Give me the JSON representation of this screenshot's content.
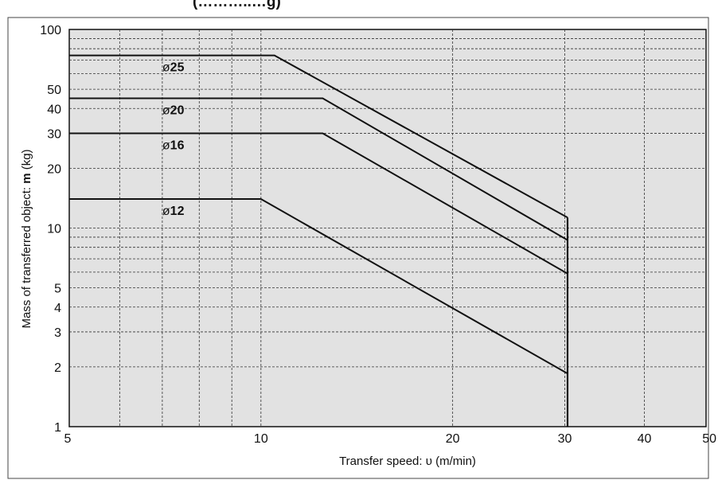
{
  "chart_data": {
    "type": "line",
    "title_fragment": "(………..…g)",
    "xlabel": "Transfer speed: υ (m/min)",
    "ylabel_prefix": "Mass of transferred object: ",
    "ylabel_bold": "m",
    "ylabel_suffix": " (kg)",
    "x_scale": "log",
    "y_scale": "log",
    "xlim": [
      5,
      50
    ],
    "ylim": [
      1,
      100
    ],
    "x_ticks": [
      5,
      10,
      20,
      30,
      40,
      50
    ],
    "y_ticks": [
      1,
      2,
      3,
      4,
      5,
      10,
      20,
      30,
      40,
      50,
      100
    ],
    "grid": true,
    "grid_style": "dashed",
    "plot_background": "#e2e2e2",
    "line_color": "#111111",
    "series": [
      {
        "name": "ø25",
        "prefix": "ø",
        "bold": "25",
        "points": [
          [
            5,
            74
          ],
          [
            10.5,
            74
          ],
          [
            30.3,
            11.3
          ]
        ]
      },
      {
        "name": "ø20",
        "prefix": "ø",
        "bold": "20",
        "points": [
          [
            5,
            45
          ],
          [
            12.5,
            45
          ],
          [
            30.3,
            8.7
          ]
        ]
      },
      {
        "name": "ø16",
        "prefix": "ø",
        "bold": "16",
        "points": [
          [
            5,
            30
          ],
          [
            12.5,
            30
          ],
          [
            30.3,
            5.9
          ]
        ]
      },
      {
        "name": "ø12",
        "prefix": "ø",
        "bold": "12",
        "points": [
          [
            5,
            14
          ],
          [
            10,
            14
          ],
          [
            30.3,
            1.85
          ]
        ]
      }
    ],
    "cutoff": {
      "x": 30.3,
      "y_from": 1,
      "y_to": 11.3
    }
  }
}
